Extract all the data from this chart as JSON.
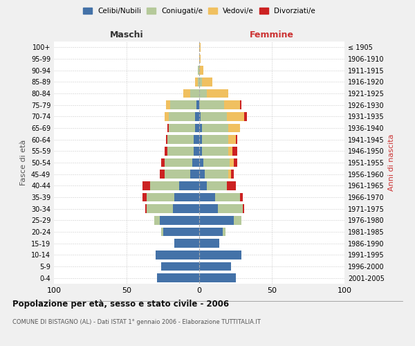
{
  "age_groups": [
    "0-4",
    "5-9",
    "10-14",
    "15-19",
    "20-24",
    "25-29",
    "30-34",
    "35-39",
    "40-44",
    "45-49",
    "50-54",
    "55-59",
    "60-64",
    "65-69",
    "70-74",
    "75-79",
    "80-84",
    "85-89",
    "90-94",
    "95-99",
    "100+"
  ],
  "birth_years": [
    "2001-2005",
    "1996-2000",
    "1991-1995",
    "1986-1990",
    "1981-1985",
    "1976-1980",
    "1971-1975",
    "1966-1970",
    "1961-1965",
    "1956-1960",
    "1951-1955",
    "1946-1950",
    "1941-1945",
    "1936-1940",
    "1931-1935",
    "1926-1930",
    "1921-1925",
    "1916-1920",
    "1911-1915",
    "1906-1910",
    "≤ 1905"
  ],
  "maschi": {
    "celibi": [
      29,
      26,
      30,
      17,
      25,
      27,
      18,
      17,
      14,
      6,
      5,
      4,
      4,
      3,
      3,
      2,
      0,
      0,
      0,
      0,
      0
    ],
    "coniugati": [
      0,
      0,
      0,
      0,
      1,
      4,
      18,
      19,
      20,
      18,
      19,
      18,
      18,
      18,
      18,
      18,
      6,
      1,
      1,
      0,
      0
    ],
    "vedovi": [
      0,
      0,
      0,
      0,
      0,
      0,
      0,
      0,
      0,
      0,
      0,
      0,
      0,
      0,
      3,
      3,
      5,
      2,
      0,
      0,
      0
    ],
    "divorziati": [
      0,
      0,
      0,
      0,
      0,
      0,
      1,
      3,
      5,
      3,
      2,
      2,
      1,
      1,
      0,
      0,
      0,
      0,
      0,
      0,
      0
    ]
  },
  "femmine": {
    "nubili": [
      25,
      22,
      29,
      14,
      16,
      24,
      13,
      11,
      5,
      4,
      3,
      2,
      2,
      2,
      1,
      0,
      0,
      0,
      0,
      0,
      0
    ],
    "coniugate": [
      0,
      0,
      0,
      0,
      2,
      5,
      17,
      17,
      14,
      16,
      18,
      18,
      18,
      18,
      18,
      17,
      5,
      2,
      0,
      0,
      0
    ],
    "vedove": [
      0,
      0,
      0,
      0,
      0,
      0,
      0,
      0,
      0,
      2,
      3,
      3,
      5,
      8,
      12,
      11,
      15,
      7,
      3,
      1,
      1
    ],
    "divorziate": [
      0,
      0,
      0,
      0,
      0,
      0,
      1,
      2,
      6,
      2,
      2,
      3,
      1,
      0,
      2,
      1,
      0,
      0,
      0,
      0,
      0
    ]
  },
  "colors": {
    "celibi": "#4472a8",
    "coniugati": "#b5c99a",
    "vedovi": "#f0c060",
    "divorziati": "#cc2222"
  },
  "title": "Popolazione per età, sesso e stato civile - 2006",
  "subtitle": "COMUNE DI BISTAGNO (AL) - Dati ISTAT 1° gennaio 2006 - Elaborazione TUTTITALIA.IT",
  "ylabel": "Fasce di età",
  "ylabel_right": "Anni di nascita",
  "xlabel_left": "Maschi",
  "xlabel_right": "Femmine",
  "xlim": 100,
  "background_color": "#f0f0f0",
  "plot_bg": "#ffffff"
}
